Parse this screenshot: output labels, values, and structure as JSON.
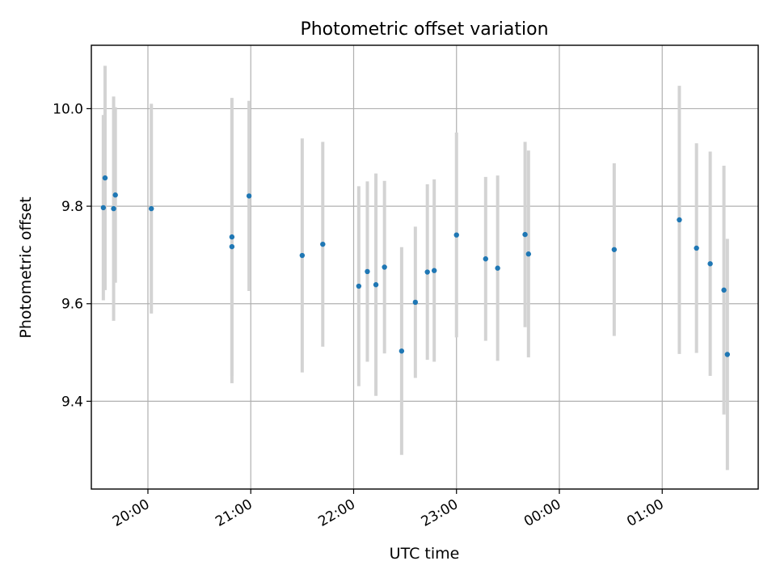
{
  "chart_data": {
    "type": "scatter",
    "title": "Photometric offset variation",
    "xlabel": "UTC time",
    "ylabel": "Photometric offset",
    "grid": true,
    "xlim": [
      "19:27",
      "01:56"
    ],
    "ylim": [
      9.22,
      10.13
    ],
    "x_ticks": [
      "20:00",
      "21:00",
      "22:00",
      "23:00",
      "00:00",
      "01:00"
    ],
    "y_ticks": [
      9.4,
      9.6,
      9.8,
      10.0
    ],
    "y_tick_labels": [
      "9.4",
      "9.6",
      "9.8",
      "10.0"
    ],
    "colors": {
      "marker": "#1f77b4",
      "errorbar": "#d3d3d3"
    },
    "points": [
      {
        "x": "19:34",
        "y": 9.797,
        "err": 0.19
      },
      {
        "x": "19:35",
        "y": 9.858,
        "err": 0.23
      },
      {
        "x": "19:40",
        "y": 9.795,
        "err": 0.23
      },
      {
        "x": "19:41",
        "y": 9.823,
        "err": 0.18
      },
      {
        "x": "20:02",
        "y": 9.795,
        "err": 0.215
      },
      {
        "x": "20:49",
        "y": 9.737,
        "err": 0.285
      },
      {
        "x": "20:49",
        "y": 9.717,
        "err": 0.28
      },
      {
        "x": "20:59",
        "y": 9.821,
        "err": 0.195
      },
      {
        "x": "21:30",
        "y": 9.699,
        "err": 0.24
      },
      {
        "x": "21:42",
        "y": 9.722,
        "err": 0.21
      },
      {
        "x": "22:03",
        "y": 9.636,
        "err": 0.205
      },
      {
        "x": "22:08",
        "y": 9.666,
        "err": 0.185
      },
      {
        "x": "22:13",
        "y": 9.639,
        "err": 0.228
      },
      {
        "x": "22:18",
        "y": 9.675,
        "err": 0.177
      },
      {
        "x": "22:28",
        "y": 9.503,
        "err": 0.213
      },
      {
        "x": "22:36",
        "y": 9.603,
        "err": 0.155
      },
      {
        "x": "22:43",
        "y": 9.665,
        "err": 0.18
      },
      {
        "x": "22:47",
        "y": 9.668,
        "err": 0.187
      },
      {
        "x": "23:00",
        "y": 9.741,
        "err": 0.21
      },
      {
        "x": "23:17",
        "y": 9.692,
        "err": 0.168
      },
      {
        "x": "23:24",
        "y": 9.673,
        "err": 0.19
      },
      {
        "x": "23:40",
        "y": 9.742,
        "err": 0.19
      },
      {
        "x": "23:42",
        "y": 9.702,
        "err": 0.212
      },
      {
        "x": "00:32",
        "y": 9.711,
        "err": 0.177
      },
      {
        "x": "01:10",
        "y": 9.772,
        "err": 0.275
      },
      {
        "x": "01:20",
        "y": 9.714,
        "err": 0.215
      },
      {
        "x": "01:28",
        "y": 9.682,
        "err": 0.23
      },
      {
        "x": "01:36",
        "y": 9.628,
        "err": 0.255
      },
      {
        "x": "01:38",
        "y": 9.496,
        "err": 0.237
      }
    ]
  }
}
